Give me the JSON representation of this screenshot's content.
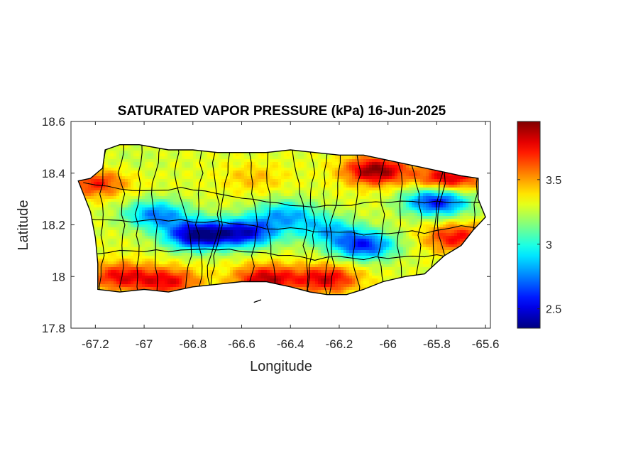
{
  "figure": {
    "title": "SATURATED VAPOR PRESSURE (kPa) 16-Jun-2025",
    "xlabel": "Longitude",
    "ylabel": "Latitude"
  },
  "map": {
    "region": "Puerto Rico",
    "xlim": [
      -67.3,
      -65.58
    ],
    "ylim": [
      17.8,
      18.6
    ],
    "x_ticks": [
      -67.2,
      -67,
      -66.8,
      -66.6,
      -66.4,
      -66.2,
      -66,
      -65.8,
      -65.6
    ],
    "y_ticks": [
      17.8,
      18,
      18.2,
      18.4,
      18.6
    ],
    "colormap": "jet",
    "boundary_color": "#000000",
    "outline": [
      [
        -67.27,
        18.37
      ],
      [
        -67.22,
        18.38
      ],
      [
        -67.17,
        18.42
      ],
      [
        -67.16,
        18.49
      ],
      [
        -67.1,
        18.51
      ],
      [
        -67.02,
        18.51
      ],
      [
        -66.9,
        18.49
      ],
      [
        -66.8,
        18.49
      ],
      [
        -66.7,
        18.48
      ],
      [
        -66.6,
        18.48
      ],
      [
        -66.5,
        18.48
      ],
      [
        -66.4,
        18.49
      ],
      [
        -66.3,
        18.48
      ],
      [
        -66.2,
        18.47
      ],
      [
        -66.1,
        18.47
      ],
      [
        -66.0,
        18.45
      ],
      [
        -65.9,
        18.43
      ],
      [
        -65.8,
        18.41
      ],
      [
        -65.7,
        18.39
      ],
      [
        -65.63,
        18.38
      ],
      [
        -65.63,
        18.3
      ],
      [
        -65.6,
        18.23
      ],
      [
        -65.65,
        18.18
      ],
      [
        -65.7,
        18.12
      ],
      [
        -65.77,
        18.08
      ],
      [
        -65.85,
        18.01
      ],
      [
        -65.93,
        18.0
      ],
      [
        -66.02,
        17.98
      ],
      [
        -66.1,
        17.95
      ],
      [
        -66.17,
        17.93
      ],
      [
        -66.25,
        17.93
      ],
      [
        -66.32,
        17.94
      ],
      [
        -66.4,
        17.96
      ],
      [
        -66.5,
        17.98
      ],
      [
        -66.6,
        17.98
      ],
      [
        -66.7,
        17.97
      ],
      [
        -66.8,
        17.96
      ],
      [
        -66.9,
        17.94
      ],
      [
        -67.0,
        17.95
      ],
      [
        -67.1,
        17.94
      ],
      [
        -67.19,
        17.95
      ],
      [
        -67.19,
        18.05
      ],
      [
        -67.2,
        18.15
      ],
      [
        -67.22,
        18.25
      ],
      [
        -67.27,
        18.37
      ]
    ],
    "islet": [
      [
        -66.55,
        17.9
      ],
      [
        -66.52,
        17.91
      ]
    ]
  },
  "field": {
    "base_value": 3.3,
    "anomalies": [
      {
        "lon": -66.78,
        "lat": 18.16,
        "delta": -0.95
      },
      {
        "lon": -66.58,
        "lat": 18.17,
        "delta": -0.75
      },
      {
        "lon": -66.95,
        "lat": 18.24,
        "delta": -0.55
      },
      {
        "lon": -66.42,
        "lat": 18.24,
        "delta": -0.45
      },
      {
        "lon": -66.1,
        "lat": 18.12,
        "delta": -0.7
      },
      {
        "lon": -65.8,
        "lat": 18.29,
        "delta": -0.75
      },
      {
        "lon": -66.25,
        "lat": 18.18,
        "delta": -0.4
      },
      {
        "lon": -66.05,
        "lat": 18.41,
        "delta": 0.65
      },
      {
        "lon": -65.75,
        "lat": 18.38,
        "delta": 0.55
      },
      {
        "lon": -66.5,
        "lat": 17.99,
        "delta": 0.55
      },
      {
        "lon": -66.25,
        "lat": 17.99,
        "delta": 0.5
      },
      {
        "lon": -67.1,
        "lat": 18.0,
        "delta": 0.45
      },
      {
        "lon": -66.9,
        "lat": 17.98,
        "delta": 0.45
      },
      {
        "lon": -67.2,
        "lat": 18.36,
        "delta": 0.4
      },
      {
        "lon": -65.72,
        "lat": 18.15,
        "delta": 0.45
      },
      {
        "lon": -66.55,
        "lat": 18.38,
        "delta": 0.15
      },
      {
        "lon": -67.05,
        "lat": 18.45,
        "delta": -0.05
      }
    ]
  },
  "colorbar": {
    "range": [
      2.35,
      3.95
    ],
    "ticks": [
      2.5,
      3,
      3.5
    ]
  }
}
